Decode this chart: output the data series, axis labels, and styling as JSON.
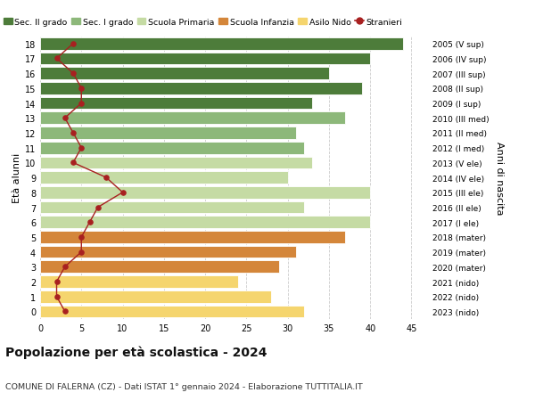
{
  "ages": [
    0,
    1,
    2,
    3,
    4,
    5,
    6,
    7,
    8,
    9,
    10,
    11,
    12,
    13,
    14,
    15,
    16,
    17,
    18
  ],
  "bar_values": [
    32,
    28,
    24,
    29,
    31,
    37,
    40,
    32,
    40,
    30,
    33,
    32,
    31,
    37,
    33,
    39,
    35,
    40,
    44
  ],
  "bar_colors": [
    "#f5d56e",
    "#f5d56e",
    "#f5d56e",
    "#d4863a",
    "#d4863a",
    "#d4863a",
    "#c5dba4",
    "#c5dba4",
    "#c5dba4",
    "#c5dba4",
    "#c5dba4",
    "#8db87a",
    "#8db87a",
    "#8db87a",
    "#4d7c3a",
    "#4d7c3a",
    "#4d7c3a",
    "#4d7c3a",
    "#4d7c3a"
  ],
  "stranieri_values": [
    3,
    2,
    2,
    3,
    5,
    5,
    6,
    7,
    10,
    8,
    4,
    5,
    4,
    3,
    5,
    5,
    4,
    2,
    4
  ],
  "right_labels": [
    "2023 (nido)",
    "2022 (nido)",
    "2021 (nido)",
    "2020 (mater)",
    "2019 (mater)",
    "2018 (mater)",
    "2017 (I ele)",
    "2016 (II ele)",
    "2015 (III ele)",
    "2014 (IV ele)",
    "2013 (V ele)",
    "2012 (I med)",
    "2011 (II med)",
    "2010 (III med)",
    "2009 (I sup)",
    "2008 (II sup)",
    "2007 (III sup)",
    "2006 (IV sup)",
    "2005 (V sup)"
  ],
  "legend_labels": [
    "Sec. II grado",
    "Sec. I grado",
    "Scuola Primaria",
    "Scuola Infanzia",
    "Asilo Nido",
    "Stranieri"
  ],
  "legend_colors": [
    "#4d7c3a",
    "#8db87a",
    "#c5dba4",
    "#d4863a",
    "#f5d56e",
    "#a82020"
  ],
  "ylabel_left": "Età alunni",
  "ylabel_right": "Anni di nascita",
  "title": "Popolazione per età scolastica - 2024",
  "subtitle": "COMUNE DI FALERNA (CZ) - Dati ISTAT 1° gennaio 2024 - Elaborazione TUTTITALIA.IT",
  "xlim": [
    0,
    47
  ],
  "xticks": [
    0,
    5,
    10,
    15,
    20,
    25,
    30,
    35,
    40,
    45
  ],
  "stranieri_color": "#a82020",
  "bg_color": "#ffffff",
  "grid_color": "#cccccc"
}
